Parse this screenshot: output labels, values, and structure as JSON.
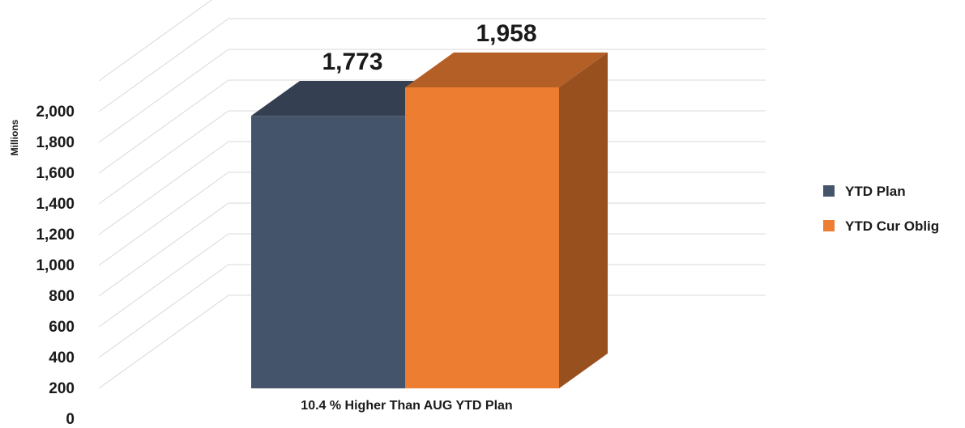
{
  "chart_data": {
    "type": "bar",
    "ylabel": "Millions",
    "ylim": [
      0,
      2000
    ],
    "yticks": [
      0,
      200,
      400,
      600,
      800,
      1000,
      1200,
      1400,
      1600,
      1800,
      2000
    ],
    "ytick_labels": [
      "0",
      "200",
      "400",
      "600",
      "800",
      "1,000",
      "1,200",
      "1,400",
      "1,600",
      "1,800",
      "2,000"
    ],
    "categories": [
      "10.4 % Higher Than AUG YTD Plan"
    ],
    "series": [
      {
        "name": "YTD Plan",
        "values": [
          1773
        ],
        "label": "1,773",
        "color": "#44546a"
      },
      {
        "name": "YTD Cur Oblig",
        "values": [
          1958
        ],
        "label": "1,958",
        "color": "#ed7d31"
      }
    ],
    "legend_position": "right",
    "grid": true,
    "style": "3d-column"
  }
}
